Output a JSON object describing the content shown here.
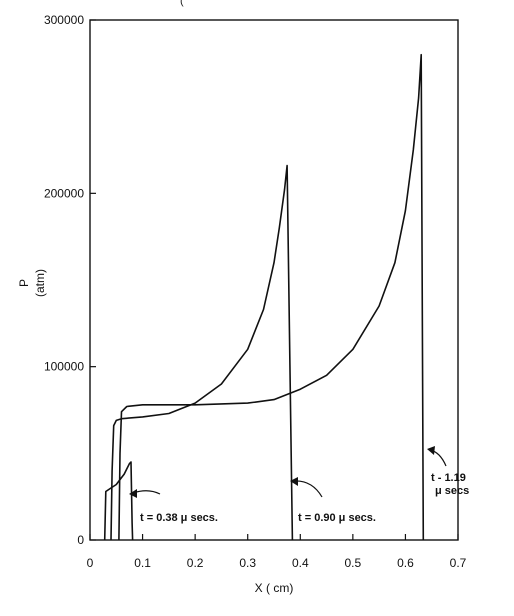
{
  "chart_data": {
    "type": "line",
    "title": "",
    "title_fragment": "(",
    "xlabel": "X ( cm)",
    "ylabel_main": "P",
    "ylabel_unit": "(atm)",
    "xlim": [
      0,
      0.7
    ],
    "ylim": [
      0,
      300000
    ],
    "x_ticks": [
      "0",
      "0.1",
      "0.2",
      "0.3",
      "0.4",
      "0.5",
      "0.6",
      "0.7"
    ],
    "y_ticks": [
      "0",
      "100000",
      "200000",
      "300000"
    ],
    "grid": false,
    "series": [
      {
        "label": "t = 0.38 μ secs.",
        "points": [
          [
            0.028,
            0
          ],
          [
            0.03,
            28000
          ],
          [
            0.04,
            30000
          ],
          [
            0.05,
            32000
          ],
          [
            0.06,
            36000
          ],
          [
            0.065,
            38000
          ],
          [
            0.07,
            41000
          ],
          [
            0.075,
            44000
          ],
          [
            0.078,
            45000
          ],
          [
            0.08,
            10000
          ],
          [
            0.081,
            0
          ]
        ]
      },
      {
        "label": "t = 0.90 μ secs.",
        "points": [
          [
            0.04,
            0
          ],
          [
            0.042,
            40000
          ],
          [
            0.045,
            66000
          ],
          [
            0.05,
            69000
          ],
          [
            0.06,
            70000
          ],
          [
            0.1,
            71000
          ],
          [
            0.15,
            73000
          ],
          [
            0.2,
            79000
          ],
          [
            0.25,
            90000
          ],
          [
            0.3,
            110000
          ],
          [
            0.33,
            133000
          ],
          [
            0.35,
            160000
          ],
          [
            0.36,
            180000
          ],
          [
            0.37,
            202000
          ],
          [
            0.375,
            216000
          ],
          [
            0.385,
            0
          ]
        ]
      },
      {
        "label": "t = 1.19 μ secs",
        "points": [
          [
            0.055,
            0
          ],
          [
            0.057,
            50000
          ],
          [
            0.06,
            74000
          ],
          [
            0.07,
            77000
          ],
          [
            0.1,
            78000
          ],
          [
            0.2,
            78000
          ],
          [
            0.3,
            79000
          ],
          [
            0.35,
            81000
          ],
          [
            0.4,
            87000
          ],
          [
            0.45,
            95000
          ],
          [
            0.5,
            110000
          ],
          [
            0.55,
            135000
          ],
          [
            0.58,
            160000
          ],
          [
            0.6,
            190000
          ],
          [
            0.615,
            225000
          ],
          [
            0.625,
            255000
          ],
          [
            0.63,
            280000
          ],
          [
            0.634,
            0
          ]
        ]
      }
    ],
    "annotations": [
      {
        "text": "t = 0.38 μ secs."
      },
      {
        "text": "t = 0.90 μ secs."
      },
      {
        "text_line1": "t - 1.19",
        "text_line2": "μ secs"
      }
    ]
  }
}
